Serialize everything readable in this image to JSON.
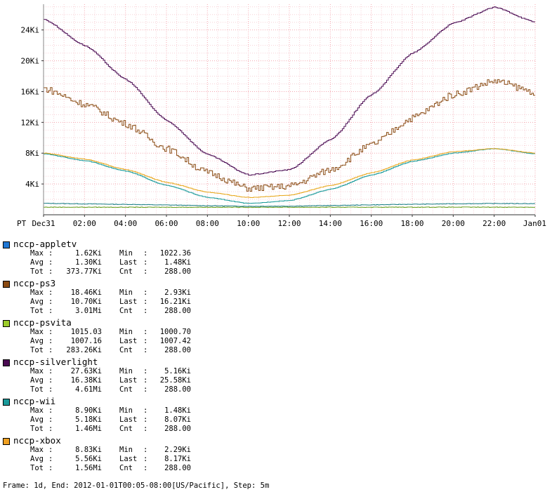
{
  "chart_data": {
    "type": "line",
    "timezone_label": "PT",
    "x_tick_labels": [
      "Dec31",
      "02:00",
      "04:00",
      "06:00",
      "08:00",
      "10:00",
      "12:00",
      "14:00",
      "16:00",
      "18:00",
      "20:00",
      "22:00",
      "Jan01"
    ],
    "y_tick_labels": [
      "4Ki",
      "8Ki",
      "12Ki",
      "16Ki",
      "20Ki",
      "24Ki"
    ],
    "x_range_hours": [
      0,
      24
    ],
    "y_range": [
      0,
      28000
    ],
    "grid": true,
    "legend_placement": "bottom",
    "series": [
      {
        "name": "nccp-appletv",
        "color": "#1f77d4",
        "line_color": "#1b7f86",
        "x": [
          0,
          2,
          4,
          6,
          8,
          10,
          12,
          14,
          16,
          18,
          20,
          22,
          24
        ],
        "y": [
          1520,
          1450,
          1380,
          1300,
          1200,
          1130,
          1150,
          1230,
          1320,
          1400,
          1460,
          1500,
          1480
        ]
      },
      {
        "name": "nccp-ps3",
        "color": "#8a4a12",
        "line_color": "#8a4a12",
        "x": [
          0,
          2,
          4,
          6,
          8,
          10,
          12,
          14,
          16,
          18,
          20,
          22,
          24
        ],
        "y": [
          16800,
          14700,
          12100,
          8800,
          5600,
          3500,
          3800,
          6000,
          9300,
          12900,
          16000,
          17800,
          16300
        ]
      },
      {
        "name": "nccp-psvita",
        "color": "#9ccc2a",
        "line_color": "#6aa020",
        "x": [
          0,
          2,
          4,
          6,
          8,
          10,
          12,
          14,
          16,
          18,
          20,
          22,
          24
        ],
        "y": [
          1010,
          1008,
          1005,
          1003,
          1002,
          1001,
          1002,
          1004,
          1007,
          1010,
          1012,
          1013,
          1007
        ]
      },
      {
        "name": "nccp-silverlight",
        "color": "#4a0a52",
        "line_color": "#4a0a52",
        "x": [
          0,
          2,
          4,
          6,
          8,
          10,
          12,
          14,
          16,
          18,
          20,
          22,
          24
        ],
        "y": [
          26000,
          22500,
          18000,
          12500,
          8000,
          5300,
          6000,
          10000,
          16000,
          21500,
          25500,
          27600,
          25600
        ]
      },
      {
        "name": "nccp-wii",
        "color": "#1a9a9a",
        "line_color": "#1a9a9a",
        "x": [
          0,
          2,
          4,
          6,
          8,
          10,
          12,
          14,
          16,
          18,
          20,
          22,
          24
        ],
        "y": [
          8100,
          7200,
          5800,
          3900,
          2300,
          1500,
          1900,
          3400,
          5300,
          7100,
          8200,
          8800,
          8100
        ]
      },
      {
        "name": "nccp-xbox",
        "color": "#f0a020",
        "line_color": "#e8a820",
        "x": [
          0,
          2,
          4,
          6,
          8,
          10,
          12,
          14,
          16,
          18,
          20,
          22,
          24
        ],
        "y": [
          8200,
          7400,
          6000,
          4300,
          3000,
          2300,
          2600,
          3900,
          5600,
          7300,
          8400,
          8800,
          8200
        ]
      }
    ]
  },
  "legend": [
    {
      "name": "nccp-appletv",
      "color": "#1f77d4",
      "max": "1.62Ki",
      "min": "1022.36",
      "avg": "1.30Ki",
      "last": "1.48Ki",
      "tot": "373.77Ki",
      "cnt": "288.00"
    },
    {
      "name": "nccp-ps3",
      "color": "#8a4a12",
      "max": "18.46Ki",
      "min": "2.93Ki",
      "avg": "10.70Ki",
      "last": "16.21Ki",
      "tot": "3.01Mi",
      "cnt": "288.00"
    },
    {
      "name": "nccp-psvita",
      "color": "#9ccc2a",
      "max": "1015.03",
      "min": "1000.70",
      "avg": "1007.16",
      "last": "1007.42",
      "tot": "283.26Ki",
      "cnt": "288.00"
    },
    {
      "name": "nccp-silverlight",
      "color": "#4a0a52",
      "max": "27.63Ki",
      "min": "5.16Ki",
      "avg": "16.38Ki",
      "last": "25.58Ki",
      "tot": "4.61Mi",
      "cnt": "288.00"
    },
    {
      "name": "nccp-wii",
      "color": "#1a9a9a",
      "max": "8.90Ki",
      "min": "1.48Ki",
      "avg": "5.18Ki",
      "last": "8.07Ki",
      "tot": "1.46Mi",
      "cnt": "288.00"
    },
    {
      "name": "nccp-xbox",
      "color": "#f0a020",
      "max": "8.83Ki",
      "min": "2.29Ki",
      "avg": "5.56Ki",
      "last": "8.17Ki",
      "tot": "1.56Mi",
      "cnt": "288.00"
    }
  ],
  "stat_labels": {
    "max": "Max",
    "min": "Min",
    "avg": "Avg",
    "last": "Last",
    "tot": "Tot",
    "cnt": "Cnt",
    "sep": ":"
  },
  "footer": "Frame: 1d, End: 2012-01-01T00:05-08:00[US/Pacific], Step: 5m"
}
